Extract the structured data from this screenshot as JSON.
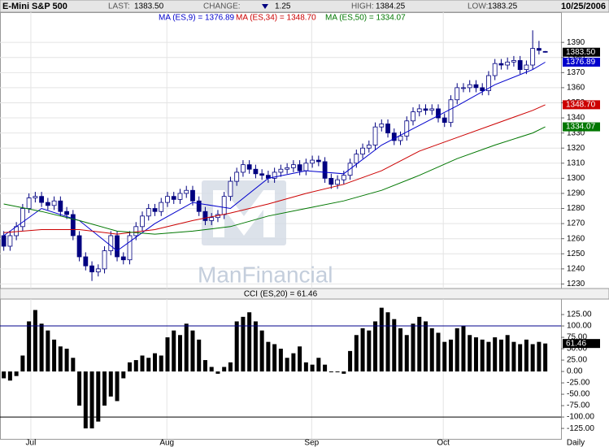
{
  "header": {
    "title": "E-Mini S&P 500",
    "items": [
      {
        "label": "LAST:",
        "value": "1383.50"
      },
      {
        "label": "CHANGE:",
        "value": "1.25"
      },
      {
        "label": "HIGH:",
        "value": "1384.25"
      },
      {
        "label": "LOW:",
        "value": "1383.25"
      }
    ],
    "date": "10/25/2006"
  },
  "chart_data": [
    {
      "type": "candlestick",
      "open": [
        1262,
        1255,
        1262,
        1268,
        1280,
        1287,
        1288,
        1284,
        1282,
        1285,
        1278,
        1276,
        1262,
        1248,
        1242,
        1238,
        1240,
        1252,
        1262,
        1248,
        1246,
        1262,
        1268,
        1275,
        1280,
        1278,
        1284,
        1288,
        1286,
        1290,
        1292,
        1285,
        1278,
        1272,
        1274,
        1276,
        1288,
        1298,
        1304,
        1309,
        1306,
        1303,
        1302,
        1300,
        1304,
        1306,
        1307,
        1309,
        1305,
        1310,
        1312,
        1311,
        1300,
        1296,
        1299,
        1302,
        1310,
        1316,
        1320,
        1322,
        1334,
        1336,
        1330,
        1325,
        1328,
        1338,
        1344,
        1346,
        1345,
        1346,
        1340,
        1337,
        1352,
        1360,
        1360,
        1362,
        1360,
        1358,
        1368,
        1376,
        1375,
        1377,
        1378,
        1372,
        1375,
        1386,
        1384
      ],
      "high": [
        1265,
        1265,
        1271,
        1283,
        1290,
        1291,
        1291,
        1287,
        1288,
        1288,
        1281,
        1279,
        1265,
        1251,
        1245,
        1243,
        1255,
        1265,
        1265,
        1251,
        1265,
        1271,
        1278,
        1283,
        1283,
        1287,
        1291,
        1291,
        1293,
        1295,
        1295,
        1288,
        1281,
        1277,
        1279,
        1291,
        1301,
        1307,
        1312,
        1312,
        1309,
        1306,
        1305,
        1307,
        1309,
        1310,
        1312,
        1312,
        1313,
        1315,
        1315,
        1314,
        1303,
        1302,
        1305,
        1313,
        1319,
        1323,
        1325,
        1337,
        1339,
        1339,
        1333,
        1331,
        1341,
        1347,
        1349,
        1349,
        1349,
        1349,
        1343,
        1355,
        1363,
        1363,
        1365,
        1365,
        1363,
        1371,
        1379,
        1379,
        1380,
        1381,
        1381,
        1378,
        1398,
        1391,
        1384.25
      ],
      "low": [
        1252,
        1252,
        1259,
        1265,
        1277,
        1284,
        1281,
        1279,
        1279,
        1275,
        1273,
        1259,
        1245,
        1239,
        1232,
        1235,
        1237,
        1249,
        1245,
        1243,
        1243,
        1259,
        1265,
        1272,
        1275,
        1275,
        1281,
        1283,
        1283,
        1287,
        1282,
        1275,
        1269,
        1269,
        1271,
        1273,
        1285,
        1295,
        1301,
        1303,
        1300,
        1299,
        1297,
        1297,
        1301,
        1303,
        1304,
        1302,
        1302,
        1307,
        1308,
        1297,
        1293,
        1293,
        1296,
        1299,
        1307,
        1313,
        1317,
        1319,
        1331,
        1327,
        1322,
        1322,
        1325,
        1335,
        1341,
        1342,
        1342,
        1337,
        1334,
        1334,
        1349,
        1357,
        1357,
        1357,
        1355,
        1355,
        1365,
        1372,
        1372,
        1374,
        1369,
        1369,
        1372,
        1382,
        1383.25
      ],
      "close": [
        1255,
        1262,
        1268,
        1280,
        1287,
        1288,
        1284,
        1282,
        1285,
        1278,
        1276,
        1262,
        1248,
        1242,
        1238,
        1240,
        1252,
        1262,
        1248,
        1246,
        1262,
        1268,
        1275,
        1280,
        1278,
        1284,
        1288,
        1286,
        1290,
        1292,
        1285,
        1278,
        1272,
        1274,
        1276,
        1288,
        1298,
        1304,
        1309,
        1306,
        1303,
        1302,
        1300,
        1304,
        1306,
        1307,
        1309,
        1305,
        1310,
        1312,
        1311,
        1300,
        1296,
        1299,
        1302,
        1310,
        1316,
        1320,
        1322,
        1334,
        1336,
        1330,
        1325,
        1328,
        1338,
        1344,
        1346,
        1345,
        1346,
        1340,
        1337,
        1352,
        1360,
        1360,
        1362,
        1360,
        1358,
        1368,
        1376,
        1375,
        1377,
        1378,
        1372,
        1375,
        1386,
        1384.75,
        1383.5
      ],
      "up_color": "#ffffff",
      "down_color": "#000080",
      "last_tag": "1383.50",
      "watermark": "ManFinancial",
      "xlim": [
        -0.6,
        88.5
      ],
      "ylim": [
        1227,
        1410
      ],
      "yticks": [
        1230,
        1240,
        1250,
        1260,
        1270,
        1280,
        1290,
        1300,
        1310,
        1320,
        1330,
        1340,
        1350,
        1360,
        1370,
        1380,
        1390
      ],
      "grid": true,
      "series": [
        {
          "name": "MA (ES,9) = 1376.89",
          "color": "#0000cc",
          "tag": "1376.89",
          "x": [
            0,
            6,
            12,
            18,
            24,
            30,
            36,
            42,
            48,
            54,
            60,
            66,
            72,
            78,
            84,
            86
          ],
          "values": [
            1262,
            1280,
            1272,
            1252,
            1270,
            1284,
            1280,
            1300,
            1305,
            1303,
            1322,
            1335,
            1348,
            1362,
            1372,
            1376.89
          ]
        },
        {
          "name": "MA (ES,34) = 1348.70",
          "color": "#cc0000",
          "tag": "1348.70",
          "x": [
            0,
            6,
            12,
            18,
            24,
            30,
            36,
            42,
            48,
            54,
            60,
            66,
            72,
            78,
            84,
            86
          ],
          "values": [
            1264,
            1266,
            1266,
            1263,
            1266,
            1272,
            1277,
            1283,
            1290,
            1296,
            1305,
            1318,
            1327,
            1336,
            1345,
            1348.7
          ]
        },
        {
          "name": "MA (ES,50) = 1334.07",
          "color": "#007700",
          "tag": "1334.07",
          "x": [
            0,
            6,
            12,
            18,
            24,
            30,
            36,
            42,
            48,
            54,
            60,
            66,
            72,
            78,
            84,
            86
          ],
          "values": [
            1283,
            1278,
            1272,
            1265,
            1263,
            1265,
            1268,
            1275,
            1280,
            1285,
            1292,
            1302,
            1313,
            1322,
            1330,
            1334.07
          ]
        }
      ]
    },
    {
      "type": "bar",
      "title": "CCI (ES,20) = 61.46",
      "color": "#000000",
      "tag": "61.46",
      "values": [
        -15,
        -20,
        -10,
        35,
        110,
        135,
        105,
        90,
        70,
        55,
        50,
        30,
        -75,
        -125,
        -125,
        -110,
        -75,
        -55,
        -65,
        -15,
        20,
        25,
        35,
        30,
        40,
        35,
        75,
        90,
        80,
        105,
        90,
        70,
        25,
        10,
        -5,
        10,
        20,
        110,
        120,
        130,
        110,
        90,
        65,
        60,
        50,
        30,
        40,
        55,
        20,
        15,
        30,
        15,
        0,
        0,
        -5,
        45,
        80,
        95,
        90,
        110,
        140,
        130,
        115,
        95,
        80,
        105,
        120,
        110,
        95,
        85,
        65,
        70,
        95,
        100,
        80,
        75,
        70,
        65,
        75,
        70,
        80,
        65,
        60,
        70,
        60,
        65,
        61.46
      ],
      "xlim": [
        -0.6,
        88.5
      ],
      "ylim": [
        -148,
        159
      ],
      "yticks": [
        {
          "value": 125,
          "label": "125.00"
        },
        {
          "value": 100,
          "label": "100.00"
        },
        {
          "value": 75,
          "label": "75.00"
        },
        {
          "value": 50,
          "label": "50.00"
        },
        {
          "value": 25,
          "label": "25.00"
        },
        {
          "value": 0,
          "label": "0.00"
        },
        {
          "value": -25,
          "label": "-25.00"
        },
        {
          "value": -50,
          "label": "-50.00"
        },
        {
          "value": -75,
          "label": "-75.00"
        },
        {
          "value": -100,
          "label": "-100.00"
        },
        {
          "value": -125,
          "label": "-125.00"
        }
      ],
      "xticks": [
        {
          "value": 4.3,
          "label": "Jul"
        },
        {
          "value": 25.9,
          "label": "Aug"
        },
        {
          "value": 48.9,
          "label": "Sep"
        },
        {
          "value": 69.8,
          "label": "Oct"
        }
      ],
      "period_label": "Daily",
      "ref_lines": [
        {
          "value": 100,
          "color": "#00008b"
        },
        {
          "value": -100,
          "color": "#000000"
        }
      ]
    }
  ]
}
